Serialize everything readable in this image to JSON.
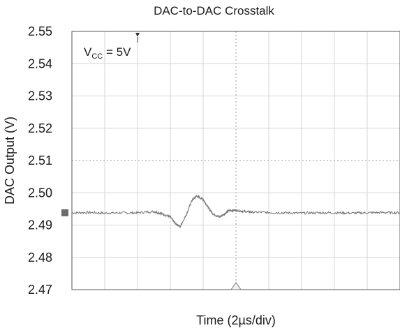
{
  "chart_data": {
    "type": "line",
    "title": "DAC-to-DAC Crosstalk",
    "xlabel": "Time (2µs/div)",
    "ylabel": "DAC Output (V)",
    "ylim": [
      2.47,
      2.55
    ],
    "yticks": [
      {
        "value": 2.55,
        "label": "2.55"
      },
      {
        "value": 2.54,
        "label": "2.54"
      },
      {
        "value": 2.53,
        "label": "2.53"
      },
      {
        "value": 2.52,
        "label": "2.52"
      },
      {
        "value": 2.51,
        "label": "2.51"
      },
      {
        "value": 2.5,
        "label": "2.50"
      },
      {
        "value": 2.49,
        "label": "2.49"
      },
      {
        "value": 2.48,
        "label": "2.48"
      },
      {
        "value": 2.47,
        "label": "2.47"
      }
    ],
    "xlim": [
      0,
      20
    ],
    "x_divisions": 10,
    "grid": true,
    "annotation": {
      "base": "V",
      "subscript": "CC",
      "rest": " = 5V"
    },
    "series": [
      {
        "color": "#7a7a7a",
        "x": [
          0,
          1,
          2,
          3,
          4,
          5,
          5.5,
          6,
          6.3,
          6.6,
          7.0,
          7.3,
          7.6,
          8.0,
          8.3,
          8.6,
          9.0,
          9.3,
          9.6,
          10.0,
          10.5,
          11,
          12,
          13,
          14,
          15,
          16,
          17,
          18,
          19,
          20
        ],
        "y": [
          2.4938,
          2.4939,
          2.4937,
          2.4938,
          2.4938,
          2.4942,
          2.4935,
          2.4925,
          2.4905,
          2.4895,
          2.4935,
          2.4975,
          2.499,
          2.498,
          2.4955,
          2.4935,
          2.4925,
          2.4935,
          2.4945,
          2.4946,
          2.4942,
          2.494,
          2.4939,
          2.4938,
          2.4937,
          2.4938,
          2.4938,
          2.4937,
          2.4938,
          2.4939,
          2.4938
        ]
      }
    ]
  }
}
